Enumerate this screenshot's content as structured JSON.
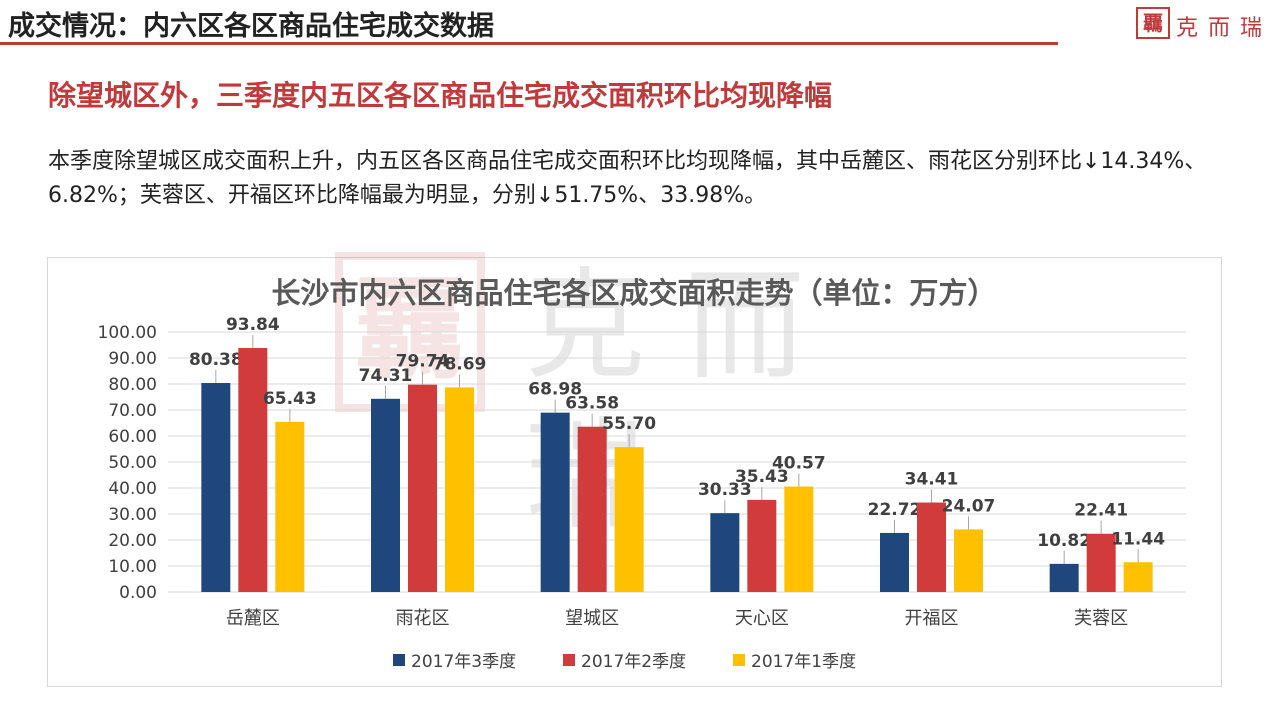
{
  "header": {
    "title": "成交情况：内六区各区商品住宅成交数据",
    "brand_seal": "覊",
    "brand_name": "克而瑞"
  },
  "subtitle": "除望城区外，三季度内五区各区商品住宅成交面积环比均现降幅",
  "body_text": "本季度除望城区成交面积上升，内五区各区商品住宅成交面积环比均现降幅，其中岳麓区、雨花区分别环比↓14.34%、6.82%；芙蓉区、开福区环比降幅最为明显，分别↓51.75%、33.98%。",
  "colors": {
    "accent": "#c0393b",
    "series_1": "#1f477d",
    "series_2": "#d13b3b",
    "series_3": "#ffc000"
  },
  "chart_data": {
    "type": "bar",
    "title": "长沙市内六区商品住宅各区成交面积走势（单位：万方）",
    "xlabel": "",
    "ylabel": "",
    "ylim": [
      0,
      100
    ],
    "yticks": [
      "0.00",
      "10.00",
      "20.00",
      "30.00",
      "40.00",
      "50.00",
      "60.00",
      "70.00",
      "80.00",
      "90.00",
      "100.00"
    ],
    "categories": [
      "岳麓区",
      "雨花区",
      "望城区",
      "天心区",
      "开福区",
      "芙蓉区"
    ],
    "series": [
      {
        "name": "2017年3季度",
        "color": "#1f477d",
        "values": [
          80.38,
          74.31,
          68.98,
          30.33,
          22.72,
          10.82
        ],
        "labels": [
          "80.38",
          "74.31",
          "68.98",
          "30.33",
          "22.72",
          "10.82"
        ]
      },
      {
        "name": "2017年2季度",
        "color": "#d13b3b",
        "values": [
          93.84,
          79.74,
          63.58,
          35.43,
          34.41,
          22.41
        ],
        "labels": [
          "93.84",
          "79.74",
          "63.58",
          "35.43",
          "34.41",
          "22.41"
        ]
      },
      {
        "name": "2017年1季度",
        "color": "#ffc000",
        "values": [
          65.43,
          78.69,
          55.7,
          40.57,
          24.07,
          11.44
        ],
        "labels": [
          "65.43",
          "78.69",
          "55.70",
          "40.57",
          "24.07",
          "11.44"
        ]
      }
    ],
    "legend": "bottom",
    "grid": true
  }
}
